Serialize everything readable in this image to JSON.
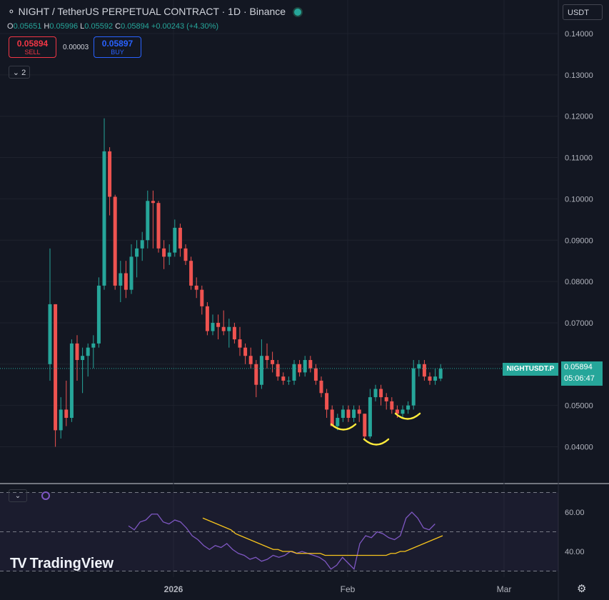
{
  "header": {
    "title": "NIGHT / TetherUS PERPETUAL CONTRACT · 1D · Binance",
    "ohlc": {
      "o_label": "O",
      "o": "0.05651",
      "h_label": "H",
      "h": "0.05996",
      "l_label": "L",
      "l": "0.05592",
      "c_label": "C",
      "c": "0.05894",
      "change": "+0.00243 (+4.30%)"
    }
  },
  "trade": {
    "sell_price": "0.05894",
    "sell_label": "SELL",
    "spread": "0.00003",
    "buy_price": "0.05897",
    "buy_label": "BUY"
  },
  "indicators_toggle": "2",
  "currency": "USDT",
  "price_tag": {
    "symbol": "NIGHTUSDT.P",
    "last": "0.05894",
    "countdown": "05:06:47"
  },
  "rsi_toggle": "⌄",
  "brand": "TradingView",
  "colors": {
    "up": "#26a69a",
    "down": "#ef5350",
    "rsi": "#7e57c2",
    "rsi_ma": "#f7c41d",
    "annotation": "#ffeb3b"
  },
  "chart_data": [
    {
      "type": "candlestick",
      "title": "",
      "y_ticks": [
        "0.14000",
        "0.13000",
        "0.12000",
        "0.11000",
        "0.10000",
        "0.09000",
        "0.08000",
        "0.07000",
        "0.06000",
        "0.05000",
        "0.04000"
      ],
      "x_ticks": [
        "2026",
        "Feb",
        "Mar"
      ],
      "ylim": [
        0.031,
        0.143
      ],
      "last_price": 0.05894,
      "candles": [
        [
          0.06,
          0.088,
          0.056,
          0.0745
        ],
        [
          0.0745,
          0.0745,
          0.04,
          0.044
        ],
        [
          0.044,
          0.052,
          0.042,
          0.049
        ],
        [
          0.049,
          0.056,
          0.045,
          0.047
        ],
        [
          0.047,
          0.066,
          0.046,
          0.065
        ],
        [
          0.065,
          0.067,
          0.056,
          0.061
        ],
        [
          0.061,
          0.064,
          0.053,
          0.062
        ],
        [
          0.062,
          0.065,
          0.057,
          0.064
        ],
        [
          0.064,
          0.067,
          0.059,
          0.065
        ],
        [
          0.065,
          0.081,
          0.064,
          0.079
        ],
        [
          0.079,
          0.1195,
          0.078,
          0.1115
        ],
        [
          0.1115,
          0.1125,
          0.096,
          0.1005
        ],
        [
          0.1005,
          0.101,
          0.078,
          0.079
        ],
        [
          0.079,
          0.085,
          0.075,
          0.082
        ],
        [
          0.082,
          0.085,
          0.076,
          0.078
        ],
        [
          0.078,
          0.089,
          0.077,
          0.086
        ],
        [
          0.086,
          0.09,
          0.081,
          0.088
        ],
        [
          0.088,
          0.092,
          0.085,
          0.09
        ],
        [
          0.09,
          0.102,
          0.088,
          0.0995
        ],
        [
          0.0995,
          0.102,
          0.088,
          0.099
        ],
        [
          0.099,
          0.0995,
          0.087,
          0.088
        ],
        [
          0.088,
          0.09,
          0.083,
          0.086
        ],
        [
          0.086,
          0.089,
          0.084,
          0.087
        ],
        [
          0.087,
          0.095,
          0.086,
          0.093
        ],
        [
          0.093,
          0.094,
          0.086,
          0.088
        ],
        [
          0.088,
          0.089,
          0.084,
          0.085
        ],
        [
          0.085,
          0.086,
          0.078,
          0.079
        ],
        [
          0.079,
          0.081,
          0.076,
          0.078
        ],
        [
          0.078,
          0.079,
          0.072,
          0.074
        ],
        [
          0.074,
          0.075,
          0.067,
          0.068
        ],
        [
          0.068,
          0.072,
          0.067,
          0.07
        ],
        [
          0.07,
          0.072,
          0.066,
          0.069
        ],
        [
          0.069,
          0.073,
          0.067,
          0.068
        ],
        [
          0.068,
          0.071,
          0.064,
          0.069
        ],
        [
          0.069,
          0.07,
          0.065,
          0.066
        ],
        [
          0.066,
          0.069,
          0.062,
          0.064
        ],
        [
          0.064,
          0.065,
          0.06,
          0.062
        ],
        [
          0.062,
          0.064,
          0.059,
          0.06
        ],
        [
          0.06,
          0.061,
          0.052,
          0.055
        ],
        [
          0.055,
          0.066,
          0.054,
          0.062
        ],
        [
          0.062,
          0.065,
          0.059,
          0.061
        ],
        [
          0.061,
          0.063,
          0.058,
          0.06
        ],
        [
          0.06,
          0.061,
          0.056,
          0.057
        ],
        [
          0.057,
          0.058,
          0.055,
          0.056
        ],
        [
          0.056,
          0.057,
          0.055,
          0.056
        ],
        [
          0.056,
          0.061,
          0.055,
          0.06
        ],
        [
          0.06,
          0.061,
          0.057,
          0.058
        ],
        [
          0.058,
          0.062,
          0.057,
          0.061
        ],
        [
          0.061,
          0.062,
          0.058,
          0.059
        ],
        [
          0.059,
          0.06,
          0.055,
          0.056
        ],
        [
          0.056,
          0.057,
          0.052,
          0.053
        ],
        [
          0.053,
          0.054,
          0.047,
          0.049
        ],
        [
          0.049,
          0.05,
          0.045,
          0.045
        ],
        [
          0.045,
          0.048,
          0.044,
          0.047
        ],
        [
          0.047,
          0.05,
          0.046,
          0.049
        ],
        [
          0.049,
          0.05,
          0.046,
          0.047
        ],
        [
          0.047,
          0.05,
          0.046,
          0.049
        ],
        [
          0.049,
          0.05,
          0.046,
          0.048
        ],
        [
          0.048,
          0.048,
          0.042,
          0.0425
        ],
        [
          0.0425,
          0.054,
          0.042,
          0.052
        ],
        [
          0.052,
          0.055,
          0.051,
          0.054
        ],
        [
          0.054,
          0.055,
          0.05,
          0.052
        ],
        [
          0.052,
          0.053,
          0.049,
          0.051
        ],
        [
          0.051,
          0.052,
          0.048,
          0.049
        ],
        [
          0.049,
          0.05,
          0.047,
          0.048
        ],
        [
          0.048,
          0.05,
          0.047,
          0.049
        ],
        [
          0.049,
          0.051,
          0.048,
          0.05
        ],
        [
          0.05,
          0.061,
          0.049,
          0.059
        ],
        [
          0.059,
          0.061,
          0.057,
          0.06
        ],
        [
          0.06,
          0.061,
          0.056,
          0.057
        ],
        [
          0.057,
          0.058,
          0.055,
          0.056
        ],
        [
          0.056,
          0.059,
          0.055,
          0.057
        ],
        [
          0.0565,
          0.06,
          0.0559,
          0.0589
        ]
      ],
      "annotations": [
        {
          "type": "smile",
          "label": ""
        },
        {
          "type": "smile",
          "label": ""
        },
        {
          "type": "smile",
          "label": ""
        }
      ]
    },
    {
      "type": "line",
      "title": "",
      "y_ticks": [
        "60.00",
        "40.00"
      ],
      "bands": [
        70,
        50,
        30
      ],
      "ylim": [
        25,
        75
      ],
      "series": [
        {
          "values": [
            53,
            51,
            55,
            56,
            59,
            59,
            55,
            54,
            56,
            55,
            52,
            48,
            46,
            43,
            41,
            43,
            42,
            44,
            41,
            39,
            38,
            36,
            37,
            35,
            36,
            38,
            37,
            38,
            40,
            39,
            40,
            39,
            38,
            37,
            35,
            31,
            33,
            37,
            34,
            31,
            44,
            48,
            47,
            50,
            49,
            47,
            46,
            48,
            57,
            60,
            57,
            52,
            51,
            54
          ]
        },
        {
          "values": [
            57,
            56,
            55,
            54,
            53,
            52,
            51,
            49,
            48,
            47,
            46,
            45,
            44,
            43,
            42,
            41,
            41,
            40,
            40,
            40,
            39,
            39,
            39,
            39,
            39,
            39,
            38,
            38,
            38,
            38,
            38,
            38,
            38,
            38,
            38,
            38,
            38,
            38,
            38,
            38,
            39,
            39,
            40,
            40,
            41,
            42,
            43,
            44,
            45,
            46,
            47,
            48
          ]
        }
      ]
    }
  ]
}
